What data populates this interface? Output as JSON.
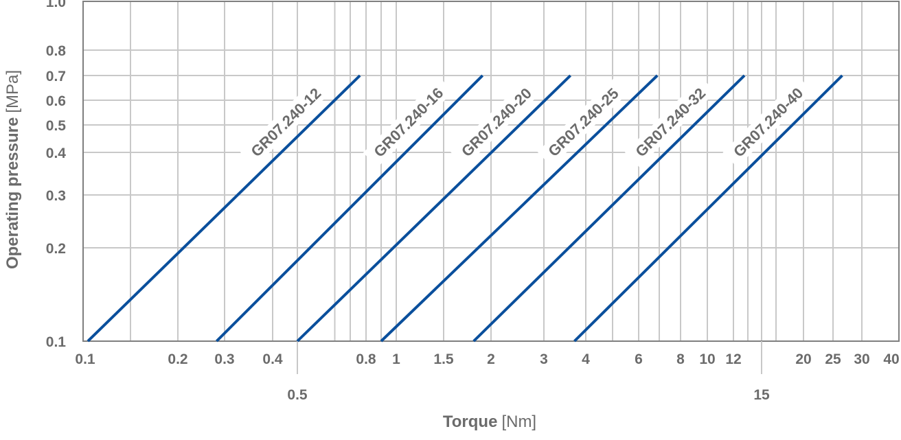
{
  "chart_data": {
    "type": "line",
    "title": "",
    "xlabel": "Torque",
    "xlabel_unit": "[Nm]",
    "ylabel": "Operating pressure",
    "ylabel_unit": "[MPa]",
    "x_scale": "log",
    "y_scale": "log",
    "xlim": [
      0.1,
      40
    ],
    "ylim": [
      0.1,
      1.0
    ],
    "grid": true,
    "x_ticks": [
      "0.1",
      "0.2",
      "0.3",
      "0.4",
      "0.8",
      "1",
      "1.5",
      "2",
      "3",
      "4",
      "6",
      "8",
      "10",
      "12",
      "20",
      "25",
      "30",
      "40"
    ],
    "x_ticks_offset": [
      "0.5",
      "15"
    ],
    "x_gridlines": [
      0.15,
      0.2,
      0.3,
      0.4,
      0.5,
      0.6,
      0.7,
      0.8,
      0.9,
      1,
      1.5,
      2,
      3,
      4,
      5,
      6,
      7,
      8,
      10,
      12,
      14,
      15,
      16,
      20,
      25,
      30
    ],
    "y_ticks": [
      "0.1",
      "0.2",
      "0.3",
      "0.4",
      "0.5",
      "0.6",
      "0.7",
      "0.8",
      "1.0"
    ],
    "line_color": "#0a4f9c",
    "series": [
      {
        "name": "GR07.240-12",
        "x": [
          0.1,
          0.76
        ],
        "y": [
          0.1,
          0.7
        ]
      },
      {
        "name": "GR07.240-16",
        "x": [
          0.28,
          1.9
        ],
        "y": [
          0.1,
          0.7
        ]
      },
      {
        "name": "GR07.240-20",
        "x": [
          0.5,
          3.6
        ],
        "y": [
          0.1,
          0.7
        ]
      },
      {
        "name": "GR07.240-25",
        "x": [
          0.9,
          6.9
        ],
        "y": [
          0.1,
          0.7
        ]
      },
      {
        "name": "GR07.240-32",
        "x": [
          1.8,
          13.5
        ],
        "y": [
          0.1,
          0.7
        ]
      },
      {
        "name": "GR07.240-40",
        "x": [
          3.7,
          26.5
        ],
        "y": [
          0.1,
          0.7
        ]
      }
    ]
  }
}
